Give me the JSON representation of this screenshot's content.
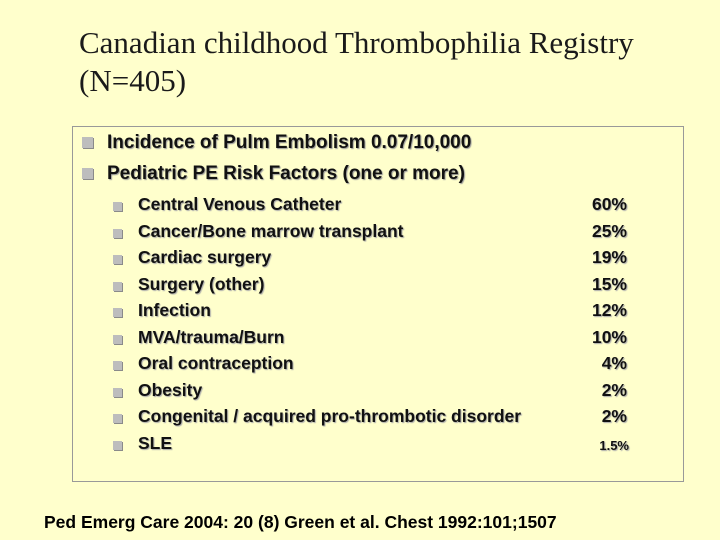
{
  "title": "Canadian childhood Thrombophilia Registry (N=405)",
  "top_bullets": [
    "Incidence of Pulm Embolism 0.07/10,000",
    "Pediatric PE Risk Factors (one or more)"
  ],
  "risk_factors": [
    {
      "label": "Central Venous Catheter",
      "pct": "60%"
    },
    {
      "label": "Cancer/Bone marrow transplant",
      "pct": "25%"
    },
    {
      "label": "Cardiac surgery",
      "pct": "19%"
    },
    {
      "label": "Surgery (other)",
      "pct": "15%"
    },
    {
      "label": "Infection",
      "pct": "12%"
    },
    {
      "label": "MVA/trauma/Burn",
      "pct": "10%"
    },
    {
      "label": "Oral contraception",
      "pct": "4%"
    },
    {
      "label": "Obesity",
      "pct": "2%"
    },
    {
      "label": "Congenital / acquired pro-thrombotic disorder",
      "pct": "2%"
    },
    {
      "label": "SLE",
      "pct": "1.5%"
    }
  ],
  "footer": "Ped Emerg Care 2004: 20 (8)  Green et al.  Chest 1992:101;1507"
}
